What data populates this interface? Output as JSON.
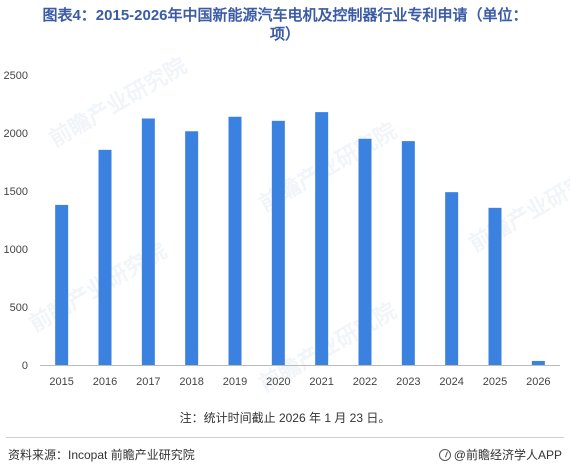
{
  "title": {
    "line1": "图表4：2015-2026年中国新能源汽车电机及控制器行业专利申请（单位：",
    "line2": "项）"
  },
  "note": "注：统计时间截止 2026 年 1 月 23 日。",
  "footer": {
    "source": "资料来源：Incopat 前瞻产业研究院",
    "brand": "@前瞻经济学人APP"
  },
  "watermark": "前瞻产业研究院",
  "colors": {
    "bar": "#3b82e0",
    "title": "#3b5ba5"
  },
  "chart_data": {
    "type": "bar",
    "title": "图表4：2015-2026年中国新能源汽车电机及控制器行业专利申请（单位：项）",
    "categories": [
      "2015",
      "2016",
      "2017",
      "2018",
      "2019",
      "2020",
      "2021",
      "2022",
      "2023",
      "2024",
      "2025",
      "2026"
    ],
    "values": [
      1380,
      1855,
      2125,
      2015,
      2140,
      2105,
      2180,
      1950,
      1930,
      1490,
      1355,
      35
    ],
    "ylim": [
      0,
      2500
    ],
    "yticks": [
      0,
      500,
      1000,
      1500,
      2000,
      2500
    ],
    "xlabel": "",
    "ylabel": "",
    "grid": false,
    "legend": "none"
  }
}
